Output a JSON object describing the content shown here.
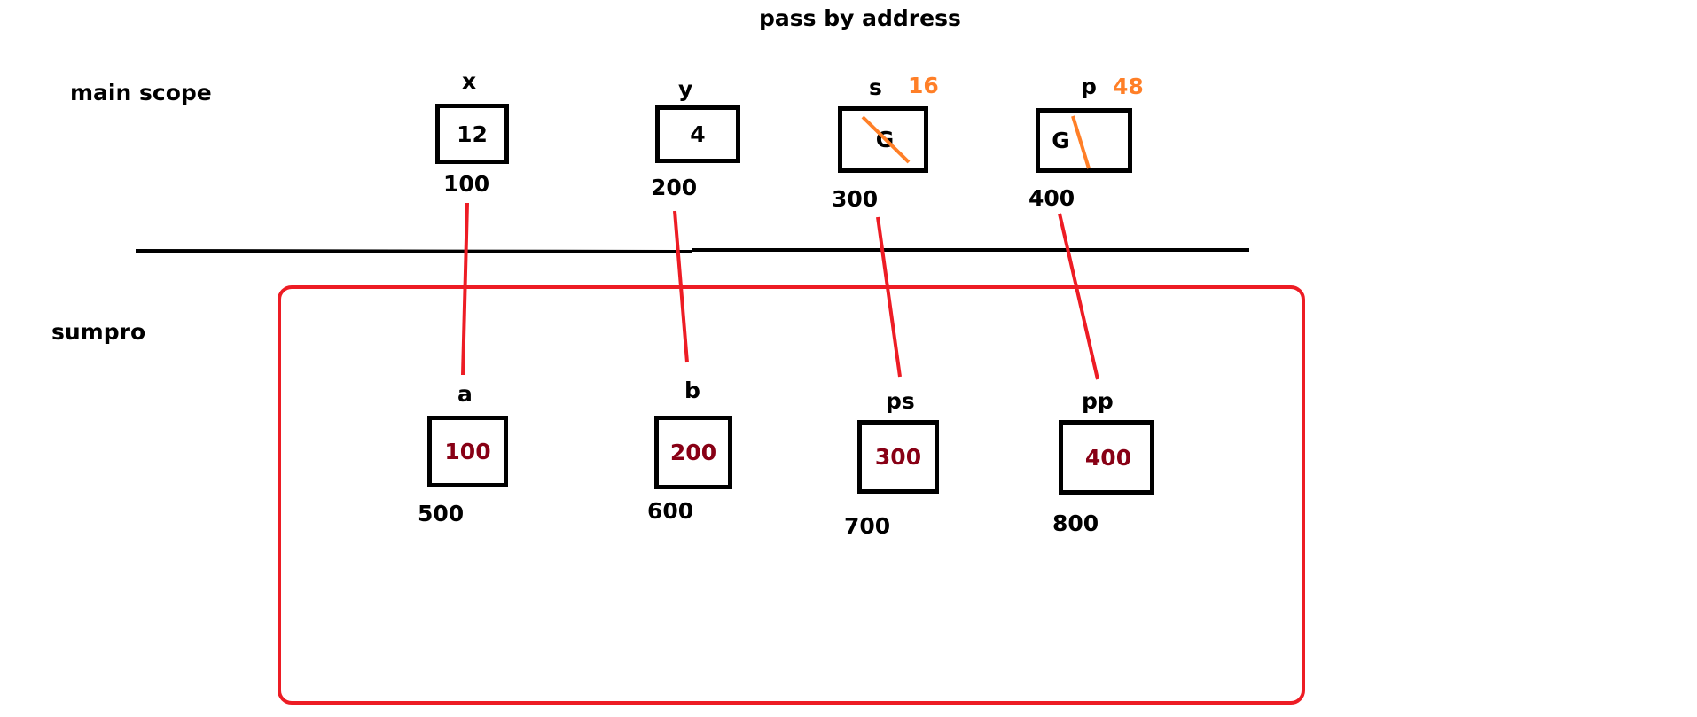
{
  "title": "pass by address",
  "scopes": {
    "main": "main scope",
    "sumpro": "sumpro"
  },
  "main_vars": [
    {
      "name": "x",
      "value": "12",
      "address": "100"
    },
    {
      "name": "y",
      "value": "4",
      "address": "200"
    },
    {
      "name": "s",
      "value": "G",
      "new_value": "16",
      "address": "300"
    },
    {
      "name": "p",
      "value": "G",
      "new_value": "48",
      "address": "400"
    }
  ],
  "sumpro_vars": [
    {
      "name": "a",
      "value": "100",
      "address": "500"
    },
    {
      "name": "b",
      "value": "200",
      "address": "600"
    },
    {
      "name": "ps",
      "value": "300",
      "address": "700"
    },
    {
      "name": "pp",
      "value": "400",
      "address": "800"
    }
  ],
  "colors": {
    "frame": "#ed1c24",
    "link": "#ed1c24",
    "strike": "#ff7f27",
    "pointer_value": "#880015"
  }
}
